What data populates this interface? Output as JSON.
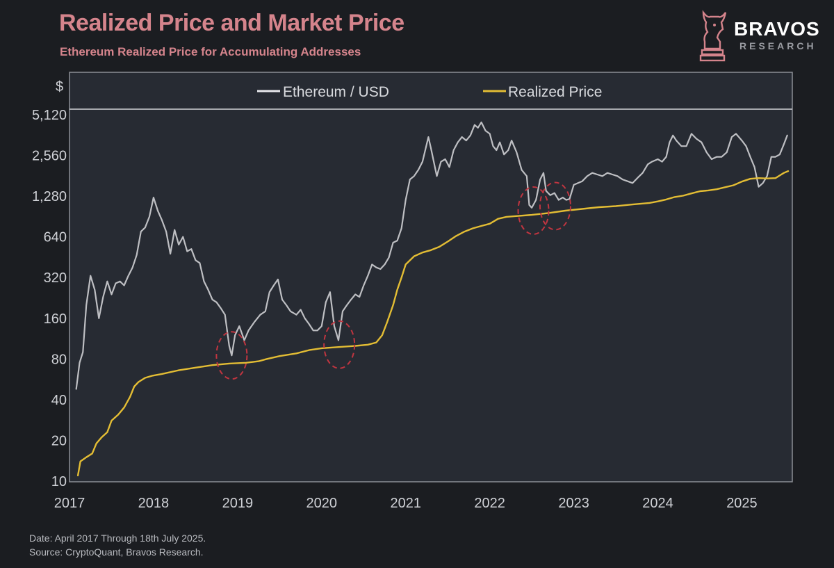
{
  "header": {
    "title": "Realized Price and Market Price",
    "subtitle": "Ethereum Realized Price for Accumulating Addresses"
  },
  "logo": {
    "name": "BRAVOS",
    "tagline": "RESEARCH",
    "icon": "bull-chess-knight-icon"
  },
  "footer": {
    "line1": "Date: April 2017 Through 18th July 2025.",
    "line2": "Source: CryptoQuant, Bravos Research."
  },
  "colors": {
    "background": "#1b1d21",
    "plot_background": "#272b33",
    "title": "#d5848c",
    "ethereum": "#e9e9ec",
    "realized": "#e3bd34",
    "highlight": "#c03540"
  },
  "chart_data": {
    "type": "line",
    "y_unit_label": "$",
    "y_scale": "log",
    "ylim": [
      10,
      5120
    ],
    "xlim": [
      2017,
      2025.6
    ],
    "yticks": [
      10,
      20,
      40,
      80,
      160,
      320,
      640,
      1280,
      2560,
      5120
    ],
    "ytick_labels": [
      "10",
      "20",
      "40",
      "80",
      "160",
      "320",
      "640",
      "1,280",
      "2,560",
      "5,120"
    ],
    "xticks": [
      2017,
      2018,
      2019,
      2020,
      2021,
      2022,
      2023,
      2024,
      2025
    ],
    "xtick_labels": [
      "2017",
      "2018",
      "2019",
      "2020",
      "2021",
      "2022",
      "2023",
      "2024",
      "2025"
    ],
    "legend": {
      "placement": "top",
      "entries": [
        "Ethereum / USD",
        "Realized Price"
      ]
    },
    "series": [
      {
        "name": "Ethereum / USD",
        "color": "#e9e9ec",
        "points": [
          [
            2017.08,
            48
          ],
          [
            2017.12,
            75
          ],
          [
            2017.16,
            90
          ],
          [
            2017.2,
            200
          ],
          [
            2017.25,
            330
          ],
          [
            2017.3,
            260
          ],
          [
            2017.35,
            160
          ],
          [
            2017.4,
            230
          ],
          [
            2017.45,
            300
          ],
          [
            2017.5,
            240
          ],
          [
            2017.55,
            290
          ],
          [
            2017.6,
            300
          ],
          [
            2017.65,
            280
          ],
          [
            2017.7,
            330
          ],
          [
            2017.75,
            380
          ],
          [
            2017.8,
            470
          ],
          [
            2017.85,
            700
          ],
          [
            2017.9,
            750
          ],
          [
            2017.95,
            900
          ],
          [
            2018.0,
            1250
          ],
          [
            2018.05,
            1000
          ],
          [
            2018.1,
            850
          ],
          [
            2018.15,
            700
          ],
          [
            2018.2,
            480
          ],
          [
            2018.25,
            720
          ],
          [
            2018.3,
            560
          ],
          [
            2018.35,
            640
          ],
          [
            2018.4,
            500
          ],
          [
            2018.45,
            520
          ],
          [
            2018.5,
            430
          ],
          [
            2018.55,
            410
          ],
          [
            2018.6,
            300
          ],
          [
            2018.65,
            260
          ],
          [
            2018.7,
            220
          ],
          [
            2018.75,
            210
          ],
          [
            2018.8,
            190
          ],
          [
            2018.85,
            170
          ],
          [
            2018.9,
            100
          ],
          [
            2018.93,
            85
          ],
          [
            2018.97,
            120
          ],
          [
            2019.02,
            140
          ],
          [
            2019.08,
            110
          ],
          [
            2019.13,
            130
          ],
          [
            2019.2,
            150
          ],
          [
            2019.27,
            170
          ],
          [
            2019.33,
            180
          ],
          [
            2019.38,
            250
          ],
          [
            2019.43,
            280
          ],
          [
            2019.48,
            310
          ],
          [
            2019.53,
            220
          ],
          [
            2019.58,
            200
          ],
          [
            2019.63,
            180
          ],
          [
            2019.7,
            170
          ],
          [
            2019.75,
            185
          ],
          [
            2019.8,
            160
          ],
          [
            2019.85,
            145
          ],
          [
            2019.9,
            130
          ],
          [
            2019.95,
            130
          ],
          [
            2020.0,
            140
          ],
          [
            2020.05,
            210
          ],
          [
            2020.1,
            250
          ],
          [
            2020.15,
            140
          ],
          [
            2020.2,
            110
          ],
          [
            2020.25,
            180
          ],
          [
            2020.3,
            200
          ],
          [
            2020.35,
            220
          ],
          [
            2020.4,
            240
          ],
          [
            2020.45,
            230
          ],
          [
            2020.5,
            280
          ],
          [
            2020.55,
            330
          ],
          [
            2020.6,
            400
          ],
          [
            2020.65,
            380
          ],
          [
            2020.7,
            370
          ],
          [
            2020.75,
            400
          ],
          [
            2020.8,
            450
          ],
          [
            2020.85,
            580
          ],
          [
            2020.9,
            600
          ],
          [
            2020.95,
            740
          ],
          [
            2021.0,
            1200
          ],
          [
            2021.05,
            1700
          ],
          [
            2021.1,
            1800
          ],
          [
            2021.15,
            2000
          ],
          [
            2021.2,
            2300
          ],
          [
            2021.27,
            3500
          ],
          [
            2021.3,
            2900
          ],
          [
            2021.37,
            1800
          ],
          [
            2021.42,
            2300
          ],
          [
            2021.47,
            2400
          ],
          [
            2021.52,
            2100
          ],
          [
            2021.57,
            2800
          ],
          [
            2021.62,
            3200
          ],
          [
            2021.67,
            3500
          ],
          [
            2021.72,
            3300
          ],
          [
            2021.77,
            3600
          ],
          [
            2021.82,
            4300
          ],
          [
            2021.86,
            4100
          ],
          [
            2021.9,
            4500
          ],
          [
            2021.95,
            3900
          ],
          [
            2022.0,
            3700
          ],
          [
            2022.04,
            3000
          ],
          [
            2022.08,
            2800
          ],
          [
            2022.12,
            3200
          ],
          [
            2022.17,
            2600
          ],
          [
            2022.22,
            2800
          ],
          [
            2022.26,
            3300
          ],
          [
            2022.32,
            2700
          ],
          [
            2022.38,
            2000
          ],
          [
            2022.44,
            1800
          ],
          [
            2022.47,
            1100
          ],
          [
            2022.5,
            1050
          ],
          [
            2022.55,
            1200
          ],
          [
            2022.6,
            1700
          ],
          [
            2022.64,
            1900
          ],
          [
            2022.67,
            1400
          ],
          [
            2022.72,
            1300
          ],
          [
            2022.77,
            1350
          ],
          [
            2022.82,
            1200
          ],
          [
            2022.87,
            1250
          ],
          [
            2022.91,
            1200
          ],
          [
            2022.95,
            1220
          ],
          [
            2023.0,
            1550
          ],
          [
            2023.05,
            1600
          ],
          [
            2023.1,
            1650
          ],
          [
            2023.16,
            1800
          ],
          [
            2023.22,
            1900
          ],
          [
            2023.28,
            1850
          ],
          [
            2023.34,
            1800
          ],
          [
            2023.4,
            1900
          ],
          [
            2023.46,
            1850
          ],
          [
            2023.52,
            1800
          ],
          [
            2023.58,
            1700
          ],
          [
            2023.64,
            1650
          ],
          [
            2023.7,
            1600
          ],
          [
            2023.76,
            1750
          ],
          [
            2023.82,
            1900
          ],
          [
            2023.88,
            2200
          ],
          [
            2023.93,
            2300
          ],
          [
            2024.0,
            2400
          ],
          [
            2024.05,
            2300
          ],
          [
            2024.1,
            2500
          ],
          [
            2024.14,
            3200
          ],
          [
            2024.18,
            3600
          ],
          [
            2024.22,
            3300
          ],
          [
            2024.28,
            3000
          ],
          [
            2024.34,
            3000
          ],
          [
            2024.4,
            3700
          ],
          [
            2024.46,
            3400
          ],
          [
            2024.52,
            3200
          ],
          [
            2024.58,
            2700
          ],
          [
            2024.64,
            2400
          ],
          [
            2024.7,
            2500
          ],
          [
            2024.76,
            2500
          ],
          [
            2024.82,
            2700
          ],
          [
            2024.88,
            3500
          ],
          [
            2024.93,
            3700
          ],
          [
            2025.0,
            3300
          ],
          [
            2025.05,
            3000
          ],
          [
            2025.1,
            2500
          ],
          [
            2025.15,
            2100
          ],
          [
            2025.2,
            1500
          ],
          [
            2025.25,
            1600
          ],
          [
            2025.3,
            1800
          ],
          [
            2025.35,
            2500
          ],
          [
            2025.4,
            2500
          ],
          [
            2025.45,
            2600
          ],
          [
            2025.5,
            3100
          ],
          [
            2025.54,
            3600
          ]
        ]
      },
      {
        "name": "Realized Price",
        "color": "#e3bd34",
        "points": [
          [
            2017.1,
            11
          ],
          [
            2017.13,
            14
          ],
          [
            2017.2,
            15
          ],
          [
            2017.27,
            16
          ],
          [
            2017.32,
            19
          ],
          [
            2017.38,
            21
          ],
          [
            2017.45,
            23
          ],
          [
            2017.5,
            28
          ],
          [
            2017.58,
            31
          ],
          [
            2017.65,
            35
          ],
          [
            2017.72,
            42
          ],
          [
            2017.77,
            50
          ],
          [
            2017.82,
            54
          ],
          [
            2017.9,
            58
          ],
          [
            2017.98,
            60
          ],
          [
            2018.1,
            62
          ],
          [
            2018.3,
            66
          ],
          [
            2018.5,
            69
          ],
          [
            2018.7,
            72
          ],
          [
            2018.9,
            74
          ],
          [
            2019.1,
            75
          ],
          [
            2019.25,
            77
          ],
          [
            2019.35,
            80
          ],
          [
            2019.5,
            84
          ],
          [
            2019.7,
            88
          ],
          [
            2019.85,
            93
          ],
          [
            2020.0,
            96
          ],
          [
            2020.2,
            98
          ],
          [
            2020.4,
            100
          ],
          [
            2020.55,
            102
          ],
          [
            2020.65,
            106
          ],
          [
            2020.72,
            120
          ],
          [
            2020.78,
            150
          ],
          [
            2020.85,
            200
          ],
          [
            2020.9,
            260
          ],
          [
            2020.95,
            320
          ],
          [
            2021.0,
            400
          ],
          [
            2021.1,
            460
          ],
          [
            2021.2,
            490
          ],
          [
            2021.3,
            510
          ],
          [
            2021.4,
            540
          ],
          [
            2021.5,
            590
          ],
          [
            2021.6,
            650
          ],
          [
            2021.7,
            700
          ],
          [
            2021.8,
            740
          ],
          [
            2021.9,
            770
          ],
          [
            2022.0,
            800
          ],
          [
            2022.1,
            870
          ],
          [
            2022.2,
            900
          ],
          [
            2022.3,
            910
          ],
          [
            2022.5,
            930
          ],
          [
            2022.7,
            960
          ],
          [
            2022.9,
            1000
          ],
          [
            2023.1,
            1030
          ],
          [
            2023.3,
            1060
          ],
          [
            2023.5,
            1080
          ],
          [
            2023.7,
            1110
          ],
          [
            2023.9,
            1140
          ],
          [
            2024.0,
            1170
          ],
          [
            2024.1,
            1210
          ],
          [
            2024.2,
            1260
          ],
          [
            2024.3,
            1290
          ],
          [
            2024.4,
            1340
          ],
          [
            2024.5,
            1390
          ],
          [
            2024.6,
            1410
          ],
          [
            2024.7,
            1440
          ],
          [
            2024.8,
            1490
          ],
          [
            2024.9,
            1540
          ],
          [
            2025.0,
            1640
          ],
          [
            2025.1,
            1720
          ],
          [
            2025.2,
            1740
          ],
          [
            2025.3,
            1730
          ],
          [
            2025.4,
            1740
          ],
          [
            2025.45,
            1820
          ],
          [
            2025.5,
            1900
          ],
          [
            2025.55,
            1960
          ]
        ]
      }
    ],
    "highlight_ellipses": [
      {
        "x": 2018.93,
        "y": 85
      },
      {
        "x": 2020.21,
        "y": 102
      },
      {
        "x": 2022.52,
        "y": 1000
      },
      {
        "x": 2022.78,
        "y": 1080
      }
    ]
  }
}
